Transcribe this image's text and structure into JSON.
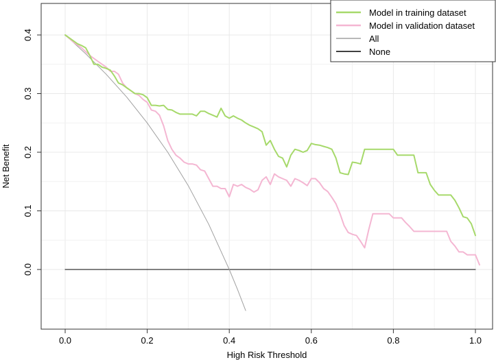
{
  "chart_data": {
    "type": "line",
    "title": "",
    "xlabel": "High Risk Threshold",
    "ylabel": "Net Benefit",
    "xlim": [
      0,
      1
    ],
    "ylim": [
      -0.07,
      0.41
    ],
    "x_ticks": [
      "0.0",
      "0.2",
      "0.4",
      "0.6",
      "0.8",
      "1.0"
    ],
    "x_tick_values": [
      0,
      0.2,
      0.4,
      0.6,
      0.8,
      1.0
    ],
    "y_ticks": [
      "0.0",
      "0.1",
      "0.2",
      "0.3",
      "0.4"
    ],
    "y_tick_values": [
      0,
      0.1,
      0.2,
      0.3,
      0.4
    ],
    "grid": true,
    "legend_position": "top-right",
    "series": [
      {
        "name": "Model in training dataset",
        "color": "#a6d96a",
        "width": 2,
        "points": [
          [
            0.0,
            0.4
          ],
          [
            0.02,
            0.39
          ],
          [
            0.03,
            0.385
          ],
          [
            0.04,
            0.382
          ],
          [
            0.05,
            0.378
          ],
          [
            0.06,
            0.365
          ],
          [
            0.07,
            0.35
          ],
          [
            0.08,
            0.35
          ],
          [
            0.09,
            0.345
          ],
          [
            0.1,
            0.343
          ],
          [
            0.11,
            0.34
          ],
          [
            0.12,
            0.33
          ],
          [
            0.13,
            0.318
          ],
          [
            0.14,
            0.315
          ],
          [
            0.15,
            0.31
          ],
          [
            0.16,
            0.305
          ],
          [
            0.17,
            0.3
          ],
          [
            0.18,
            0.3
          ],
          [
            0.19,
            0.298
          ],
          [
            0.2,
            0.293
          ],
          [
            0.21,
            0.28
          ],
          [
            0.22,
            0.28
          ],
          [
            0.23,
            0.279
          ],
          [
            0.24,
            0.28
          ],
          [
            0.25,
            0.273
          ],
          [
            0.26,
            0.272
          ],
          [
            0.27,
            0.268
          ],
          [
            0.28,
            0.265
          ],
          [
            0.29,
            0.265
          ],
          [
            0.3,
            0.265
          ],
          [
            0.31,
            0.265
          ],
          [
            0.32,
            0.262
          ],
          [
            0.33,
            0.27
          ],
          [
            0.34,
            0.27
          ],
          [
            0.35,
            0.266
          ],
          [
            0.36,
            0.263
          ],
          [
            0.37,
            0.26
          ],
          [
            0.38,
            0.275
          ],
          [
            0.39,
            0.262
          ],
          [
            0.4,
            0.258
          ],
          [
            0.41,
            0.262
          ],
          [
            0.42,
            0.258
          ],
          [
            0.43,
            0.255
          ],
          [
            0.44,
            0.25
          ],
          [
            0.45,
            0.246
          ],
          [
            0.46,
            0.243
          ],
          [
            0.47,
            0.24
          ],
          [
            0.48,
            0.235
          ],
          [
            0.49,
            0.212
          ],
          [
            0.5,
            0.22
          ],
          [
            0.51,
            0.205
          ],
          [
            0.52,
            0.193
          ],
          [
            0.53,
            0.19
          ],
          [
            0.54,
            0.175
          ],
          [
            0.55,
            0.195
          ],
          [
            0.56,
            0.205
          ],
          [
            0.57,
            0.203
          ],
          [
            0.58,
            0.2
          ],
          [
            0.59,
            0.203
          ],
          [
            0.6,
            0.215
          ],
          [
            0.61,
            0.213
          ],
          [
            0.62,
            0.212
          ],
          [
            0.63,
            0.21
          ],
          [
            0.64,
            0.208
          ],
          [
            0.65,
            0.205
          ],
          [
            0.66,
            0.19
          ],
          [
            0.67,
            0.165
          ],
          [
            0.68,
            0.163
          ],
          [
            0.69,
            0.162
          ],
          [
            0.7,
            0.183
          ],
          [
            0.71,
            0.182
          ],
          [
            0.72,
            0.18
          ],
          [
            0.73,
            0.205
          ],
          [
            0.74,
            0.205
          ],
          [
            0.75,
            0.205
          ],
          [
            0.76,
            0.205
          ],
          [
            0.77,
            0.205
          ],
          [
            0.78,
            0.205
          ],
          [
            0.79,
            0.205
          ],
          [
            0.8,
            0.205
          ],
          [
            0.81,
            0.195
          ],
          [
            0.82,
            0.195
          ],
          [
            0.83,
            0.195
          ],
          [
            0.84,
            0.195
          ],
          [
            0.85,
            0.195
          ],
          [
            0.86,
            0.165
          ],
          [
            0.87,
            0.165
          ],
          [
            0.88,
            0.165
          ],
          [
            0.89,
            0.145
          ],
          [
            0.9,
            0.135
          ],
          [
            0.91,
            0.127
          ],
          [
            0.92,
            0.127
          ],
          [
            0.93,
            0.127
          ],
          [
            0.94,
            0.127
          ],
          [
            0.95,
            0.118
          ],
          [
            0.96,
            0.105
          ],
          [
            0.97,
            0.09
          ],
          [
            0.98,
            0.088
          ],
          [
            0.99,
            0.078
          ],
          [
            1.0,
            0.058
          ]
        ]
      },
      {
        "name": "Model in validation dataset",
        "color": "#f4b6d2",
        "width": 2,
        "points": [
          [
            0.0,
            0.4
          ],
          [
            0.02,
            0.388
          ],
          [
            0.04,
            0.378
          ],
          [
            0.06,
            0.365
          ],
          [
            0.08,
            0.355
          ],
          [
            0.1,
            0.345
          ],
          [
            0.11,
            0.338
          ],
          [
            0.12,
            0.338
          ],
          [
            0.13,
            0.333
          ],
          [
            0.14,
            0.318
          ],
          [
            0.15,
            0.31
          ],
          [
            0.16,
            0.305
          ],
          [
            0.17,
            0.3
          ],
          [
            0.18,
            0.297
          ],
          [
            0.19,
            0.29
          ],
          [
            0.2,
            0.285
          ],
          [
            0.21,
            0.272
          ],
          [
            0.22,
            0.27
          ],
          [
            0.23,
            0.263
          ],
          [
            0.24,
            0.245
          ],
          [
            0.25,
            0.22
          ],
          [
            0.26,
            0.205
          ],
          [
            0.27,
            0.195
          ],
          [
            0.28,
            0.19
          ],
          [
            0.29,
            0.183
          ],
          [
            0.3,
            0.18
          ],
          [
            0.31,
            0.18
          ],
          [
            0.32,
            0.178
          ],
          [
            0.33,
            0.17
          ],
          [
            0.34,
            0.168
          ],
          [
            0.35,
            0.155
          ],
          [
            0.36,
            0.142
          ],
          [
            0.37,
            0.142
          ],
          [
            0.38,
            0.138
          ],
          [
            0.39,
            0.138
          ],
          [
            0.4,
            0.124
          ],
          [
            0.41,
            0.145
          ],
          [
            0.42,
            0.142
          ],
          [
            0.43,
            0.145
          ],
          [
            0.44,
            0.14
          ],
          [
            0.45,
            0.137
          ],
          [
            0.46,
            0.132
          ],
          [
            0.47,
            0.136
          ],
          [
            0.48,
            0.152
          ],
          [
            0.49,
            0.158
          ],
          [
            0.5,
            0.145
          ],
          [
            0.51,
            0.163
          ],
          [
            0.52,
            0.158
          ],
          [
            0.53,
            0.155
          ],
          [
            0.54,
            0.152
          ],
          [
            0.55,
            0.142
          ],
          [
            0.56,
            0.155
          ],
          [
            0.57,
            0.152
          ],
          [
            0.58,
            0.148
          ],
          [
            0.59,
            0.143
          ],
          [
            0.6,
            0.155
          ],
          [
            0.61,
            0.155
          ],
          [
            0.62,
            0.148
          ],
          [
            0.63,
            0.138
          ],
          [
            0.64,
            0.133
          ],
          [
            0.65,
            0.123
          ],
          [
            0.66,
            0.112
          ],
          [
            0.67,
            0.095
          ],
          [
            0.68,
            0.075
          ],
          [
            0.69,
            0.063
          ],
          [
            0.7,
            0.06
          ],
          [
            0.71,
            0.058
          ],
          [
            0.72,
            0.048
          ],
          [
            0.73,
            0.037
          ],
          [
            0.74,
            0.068
          ],
          [
            0.75,
            0.095
          ],
          [
            0.76,
            0.095
          ],
          [
            0.77,
            0.095
          ],
          [
            0.78,
            0.095
          ],
          [
            0.79,
            0.095
          ],
          [
            0.8,
            0.088
          ],
          [
            0.81,
            0.088
          ],
          [
            0.82,
            0.088
          ],
          [
            0.83,
            0.08
          ],
          [
            0.84,
            0.073
          ],
          [
            0.85,
            0.065
          ],
          [
            0.86,
            0.065
          ],
          [
            0.87,
            0.065
          ],
          [
            0.88,
            0.065
          ],
          [
            0.89,
            0.065
          ],
          [
            0.9,
            0.065
          ],
          [
            0.91,
            0.065
          ],
          [
            0.92,
            0.065
          ],
          [
            0.93,
            0.065
          ],
          [
            0.94,
            0.048
          ],
          [
            0.95,
            0.04
          ],
          [
            0.96,
            0.03
          ],
          [
            0.97,
            0.03
          ],
          [
            0.98,
            0.025
          ],
          [
            0.99,
            0.025
          ],
          [
            1.0,
            0.025
          ],
          [
            1.01,
            0.008
          ]
        ]
      },
      {
        "name": "All",
        "color": "#a0a0a0",
        "width": 1,
        "points": [
          [
            0.0,
            0.4
          ],
          [
            0.05,
            0.368
          ],
          [
            0.1,
            0.333
          ],
          [
            0.15,
            0.294
          ],
          [
            0.2,
            0.25
          ],
          [
            0.25,
            0.2
          ],
          [
            0.3,
            0.143
          ],
          [
            0.35,
            0.077
          ],
          [
            0.4,
            0.0
          ],
          [
            0.42,
            -0.034
          ],
          [
            0.44,
            -0.07
          ]
        ]
      },
      {
        "name": "None",
        "color": "#000000",
        "width": 1,
        "points": [
          [
            0.0,
            0.0
          ],
          [
            1.0,
            0.0
          ]
        ]
      }
    ]
  }
}
